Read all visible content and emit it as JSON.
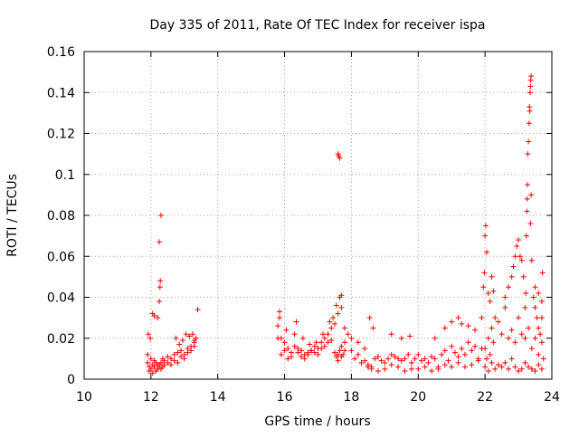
{
  "chart_data": {
    "type": "scatter",
    "title": "Day 335 of 2011, Rate Of TEC Index for receiver ispa",
    "xlabel": "GPS time / hours",
    "ylabel": "ROTI / TECUs",
    "xlim": [
      10,
      24
    ],
    "ylim": [
      0,
      0.16
    ],
    "xticks": [
      "10",
      "12",
      "14",
      "16",
      "18",
      "20",
      "22",
      "24"
    ],
    "yticks": [
      "0",
      "0.02",
      "0.04",
      "0.06",
      "0.08",
      "0.1",
      "0.12",
      "0.14",
      "0.16"
    ],
    "grid": true,
    "legend": "none",
    "marker": "+",
    "marker_color": "#ff0000",
    "series": [
      {
        "x": [
          11.9,
          11.95,
          12.0,
          12.05,
          12.1,
          12.15,
          12.2,
          12.25,
          12.3,
          12.35,
          12.4,
          12.5,
          12.6,
          12.7,
          12.8,
          12.9,
          13.0,
          13.1,
          13.2,
          13.3,
          13.35,
          11.9,
          11.95,
          12.0,
          12.05,
          12.1,
          12.15,
          12.2,
          12.25,
          12.3,
          12.35,
          12.4,
          12.5,
          12.6,
          12.7,
          12.8,
          12.9,
          13.0,
          13.1,
          13.2,
          13.3,
          11.92,
          11.98,
          12.05,
          12.1,
          12.2,
          12.25,
          12.27,
          12.28,
          12.25,
          12.3,
          12.75,
          12.85,
          12.95,
          13.05,
          13.15,
          13.25,
          13.3,
          13.4,
          15.8,
          15.85,
          15.9,
          16.0,
          16.1,
          16.2,
          16.3,
          16.4,
          16.5,
          16.6,
          16.7,
          16.8,
          16.9,
          17.0,
          17.1,
          17.2,
          17.3,
          17.4,
          17.5,
          17.6,
          17.7,
          17.8,
          17.9,
          15.8,
          15.9,
          16.0,
          16.1,
          16.2,
          16.3,
          16.4,
          16.5,
          16.6,
          16.7,
          16.8,
          16.9,
          17.0,
          17.1,
          17.2,
          17.3,
          17.4,
          17.5,
          17.6,
          17.7,
          17.8,
          15.85,
          16.05,
          16.35,
          16.55,
          16.75,
          16.95,
          17.15,
          17.35,
          17.45,
          17.55,
          17.65,
          17.7,
          17.6,
          17.62,
          17.65,
          17.55,
          17.6,
          17.65,
          17.7,
          17.75,
          17.8,
          18.0,
          18.1,
          18.2,
          18.3,
          18.4,
          18.5,
          18.6,
          18.7,
          18.8,
          18.9,
          19.0,
          19.1,
          19.2,
          19.3,
          19.4,
          19.5,
          19.6,
          19.7,
          19.8,
          19.9,
          18.0,
          18.2,
          18.4,
          18.5,
          18.6,
          18.8,
          19.0,
          19.2,
          19.4,
          19.6,
          19.8,
          18.55,
          18.65,
          19.2,
          19.5,
          19.75,
          20.0,
          20.1,
          20.2,
          20.3,
          20.4,
          20.5,
          20.6,
          20.7,
          20.8,
          20.9,
          21.0,
          21.1,
          21.2,
          21.3,
          21.4,
          21.5,
          21.6,
          21.7,
          21.8,
          21.9,
          20.0,
          20.2,
          20.4,
          20.6,
          20.8,
          21.0,
          21.2,
          21.4,
          21.6,
          21.8,
          20.5,
          20.8,
          21.0,
          21.2,
          21.3,
          21.5,
          21.7,
          22.0,
          22.05,
          22.1,
          22.15,
          22.2,
          22.25,
          22.3,
          22.4,
          22.5,
          22.6,
          22.7,
          22.8,
          22.9,
          23.0,
          23.1,
          23.2,
          23.3,
          23.4,
          23.5,
          23.6,
          23.7,
          23.75,
          22.0,
          22.1,
          22.2,
          22.3,
          22.4,
          22.5,
          22.6,
          22.7,
          22.8,
          22.9,
          23.0,
          23.1,
          23.2,
          23.3,
          23.4,
          23.5,
          23.6,
          23.7,
          21.9,
          21.95,
          21.98,
          22.0,
          22.02,
          22.05,
          22.1,
          22.15,
          22.2,
          22.25,
          22.6,
          22.7,
          22.8,
          22.85,
          22.9,
          22.95,
          23.0,
          23.05,
          23.1,
          23.15,
          23.2,
          23.22,
          23.24,
          23.25,
          23.26,
          23.27,
          23.28,
          23.3,
          23.32,
          23.33,
          23.34,
          23.35,
          23.36,
          23.37,
          23.38,
          23.38,
          23.36,
          23.4,
          23.45,
          23.5,
          23.55,
          23.6,
          23.65,
          23.7,
          23.72,
          23.5,
          23.6,
          23.7
        ],
        "y": [
          0.008,
          0.006,
          0.01,
          0.007,
          0.009,
          0.008,
          0.007,
          0.006,
          0.008,
          0.01,
          0.009,
          0.011,
          0.01,
          0.012,
          0.013,
          0.014,
          0.012,
          0.015,
          0.016,
          0.018,
          0.02,
          0.012,
          0.004,
          0.005,
          0.003,
          0.006,
          0.004,
          0.005,
          0.007,
          0.005,
          0.006,
          0.007,
          0.008,
          0.007,
          0.009,
          0.008,
          0.011,
          0.01,
          0.013,
          0.014,
          0.016,
          0.022,
          0.02,
          0.032,
          0.031,
          0.03,
          0.038,
          0.045,
          0.048,
          0.067,
          0.08,
          0.02,
          0.017,
          0.019,
          0.022,
          0.021,
          0.022,
          0.019,
          0.034,
          0.026,
          0.033,
          0.02,
          0.018,
          0.015,
          0.013,
          0.022,
          0.015,
          0.014,
          0.012,
          0.013,
          0.014,
          0.016,
          0.015,
          0.018,
          0.02,
          0.022,
          0.025,
          0.027,
          0.032,
          0.035,
          0.025,
          0.022,
          0.02,
          0.012,
          0.014,
          0.01,
          0.011,
          0.016,
          0.013,
          0.011,
          0.01,
          0.012,
          0.014,
          0.013,
          0.012,
          0.015,
          0.016,
          0.018,
          0.019,
          0.013,
          0.012,
          0.011,
          0.014,
          0.03,
          0.024,
          0.028,
          0.02,
          0.017,
          0.018,
          0.022,
          0.028,
          0.03,
          0.036,
          0.04,
          0.041,
          0.11,
          0.109,
          0.108,
          0.011,
          0.009,
          0.014,
          0.016,
          0.012,
          0.018,
          0.014,
          0.01,
          0.012,
          0.008,
          0.009,
          0.007,
          0.006,
          0.01,
          0.011,
          0.009,
          0.008,
          0.01,
          0.012,
          0.011,
          0.01,
          0.009,
          0.01,
          0.012,
          0.008,
          0.01,
          0.02,
          0.018,
          0.015,
          0.006,
          0.005,
          0.004,
          0.005,
          0.007,
          0.006,
          0.004,
          0.005,
          0.03,
          0.025,
          0.022,
          0.02,
          0.021,
          0.012,
          0.009,
          0.01,
          0.008,
          0.011,
          0.01,
          0.006,
          0.012,
          0.014,
          0.009,
          0.016,
          0.013,
          0.011,
          0.015,
          0.012,
          0.018,
          0.014,
          0.016,
          0.01,
          0.015,
          0.005,
          0.006,
          0.004,
          0.005,
          0.007,
          0.006,
          0.008,
          0.006,
          0.007,
          0.009,
          0.02,
          0.025,
          0.028,
          0.03,
          0.027,
          0.026,
          0.024,
          0.015,
          0.01,
          0.02,
          0.012,
          0.025,
          0.018,
          0.03,
          0.028,
          0.022,
          0.035,
          0.02,
          0.024,
          0.018,
          0.03,
          0.022,
          0.02,
          0.025,
          0.015,
          0.02,
          0.012,
          0.018,
          0.01,
          0.006,
          0.004,
          0.008,
          0.005,
          0.007,
          0.006,
          0.008,
          0.005,
          0.01,
          0.006,
          0.004,
          0.005,
          0.008,
          0.006,
          0.005,
          0.004,
          0.007,
          0.005,
          0.03,
          0.045,
          0.052,
          0.07,
          0.075,
          0.062,
          0.042,
          0.038,
          0.05,
          0.043,
          0.04,
          0.045,
          0.05,
          0.055,
          0.06,
          0.065,
          0.068,
          0.06,
          0.058,
          0.05,
          0.035,
          0.042,
          0.07,
          0.082,
          0.088,
          0.095,
          0.11,
          0.116,
          0.125,
          0.133,
          0.131,
          0.14,
          0.143,
          0.146,
          0.148,
          0.09,
          0.076,
          0.058,
          0.04,
          0.035,
          0.03,
          0.025,
          0.022,
          0.03,
          0.052,
          0.045,
          0.042,
          0.038
        ]
      }
    ]
  }
}
